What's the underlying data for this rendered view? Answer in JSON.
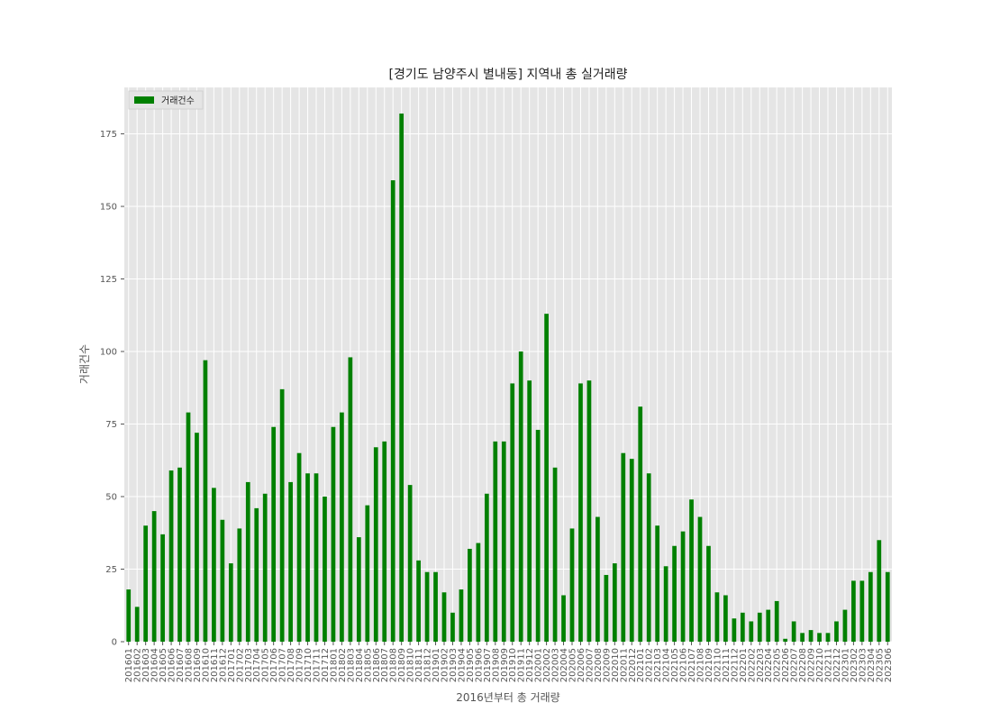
{
  "chart_data": {
    "type": "bar",
    "title": "[경기도 남양주시 별내동] 지역내 총 실거래량",
    "xlabel": "2016년부터 총 거래량",
    "ylabel": "거래건수",
    "ylim": [
      0,
      191
    ],
    "yticks": [
      0,
      25,
      50,
      75,
      100,
      125,
      150,
      175
    ],
    "grid": true,
    "legend_position": "top-left",
    "bar_color": "#008000",
    "background_color": "#e5e5e5",
    "categories": [
      "201601",
      "201602",
      "201603",
      "201604",
      "201605",
      "201606",
      "201607",
      "201608",
      "201609",
      "201610",
      "201611",
      "201612",
      "201701",
      "201702",
      "201703",
      "201704",
      "201705",
      "201706",
      "201707",
      "201708",
      "201709",
      "201710",
      "201711",
      "201712",
      "201801",
      "201802",
      "201803",
      "201804",
      "201805",
      "201806",
      "201807",
      "201808",
      "201809",
      "201810",
      "201811",
      "201812",
      "201901",
      "201902",
      "201903",
      "201904",
      "201905",
      "201906",
      "201907",
      "201908",
      "201909",
      "201910",
      "201911",
      "201912",
      "202001",
      "202002",
      "202003",
      "202004",
      "202005",
      "202006",
      "202007",
      "202008",
      "202009",
      "202010",
      "202011",
      "202012",
      "202101",
      "202102",
      "202103",
      "202104",
      "202105",
      "202106",
      "202107",
      "202108",
      "202109",
      "202110",
      "202111",
      "202112",
      "202201",
      "202202",
      "202203",
      "202204",
      "202205",
      "202206",
      "202207",
      "202208",
      "202209",
      "202210",
      "202211",
      "202212",
      "202301",
      "202302",
      "202303",
      "202304",
      "202305",
      "202306"
    ],
    "series": [
      {
        "name": "거래건수",
        "values": [
          18,
          12,
          40,
          45,
          37,
          59,
          60,
          79,
          72,
          97,
          53,
          42,
          27,
          39,
          55,
          46,
          51,
          74,
          87,
          55,
          65,
          58,
          58,
          50,
          74,
          79,
          98,
          36,
          47,
          67,
          69,
          159,
          182,
          54,
          28,
          24,
          24,
          17,
          10,
          18,
          32,
          34,
          51,
          69,
          69,
          89,
          100,
          90,
          73,
          113,
          60,
          16,
          39,
          89,
          90,
          43,
          23,
          27,
          65,
          63,
          81,
          58,
          40,
          26,
          33,
          38,
          49,
          43,
          33,
          17,
          16,
          8,
          10,
          7,
          10,
          11,
          14,
          1,
          7,
          3,
          4,
          3,
          3,
          7,
          11,
          21,
          21,
          24,
          35,
          24
        ]
      }
    ]
  }
}
